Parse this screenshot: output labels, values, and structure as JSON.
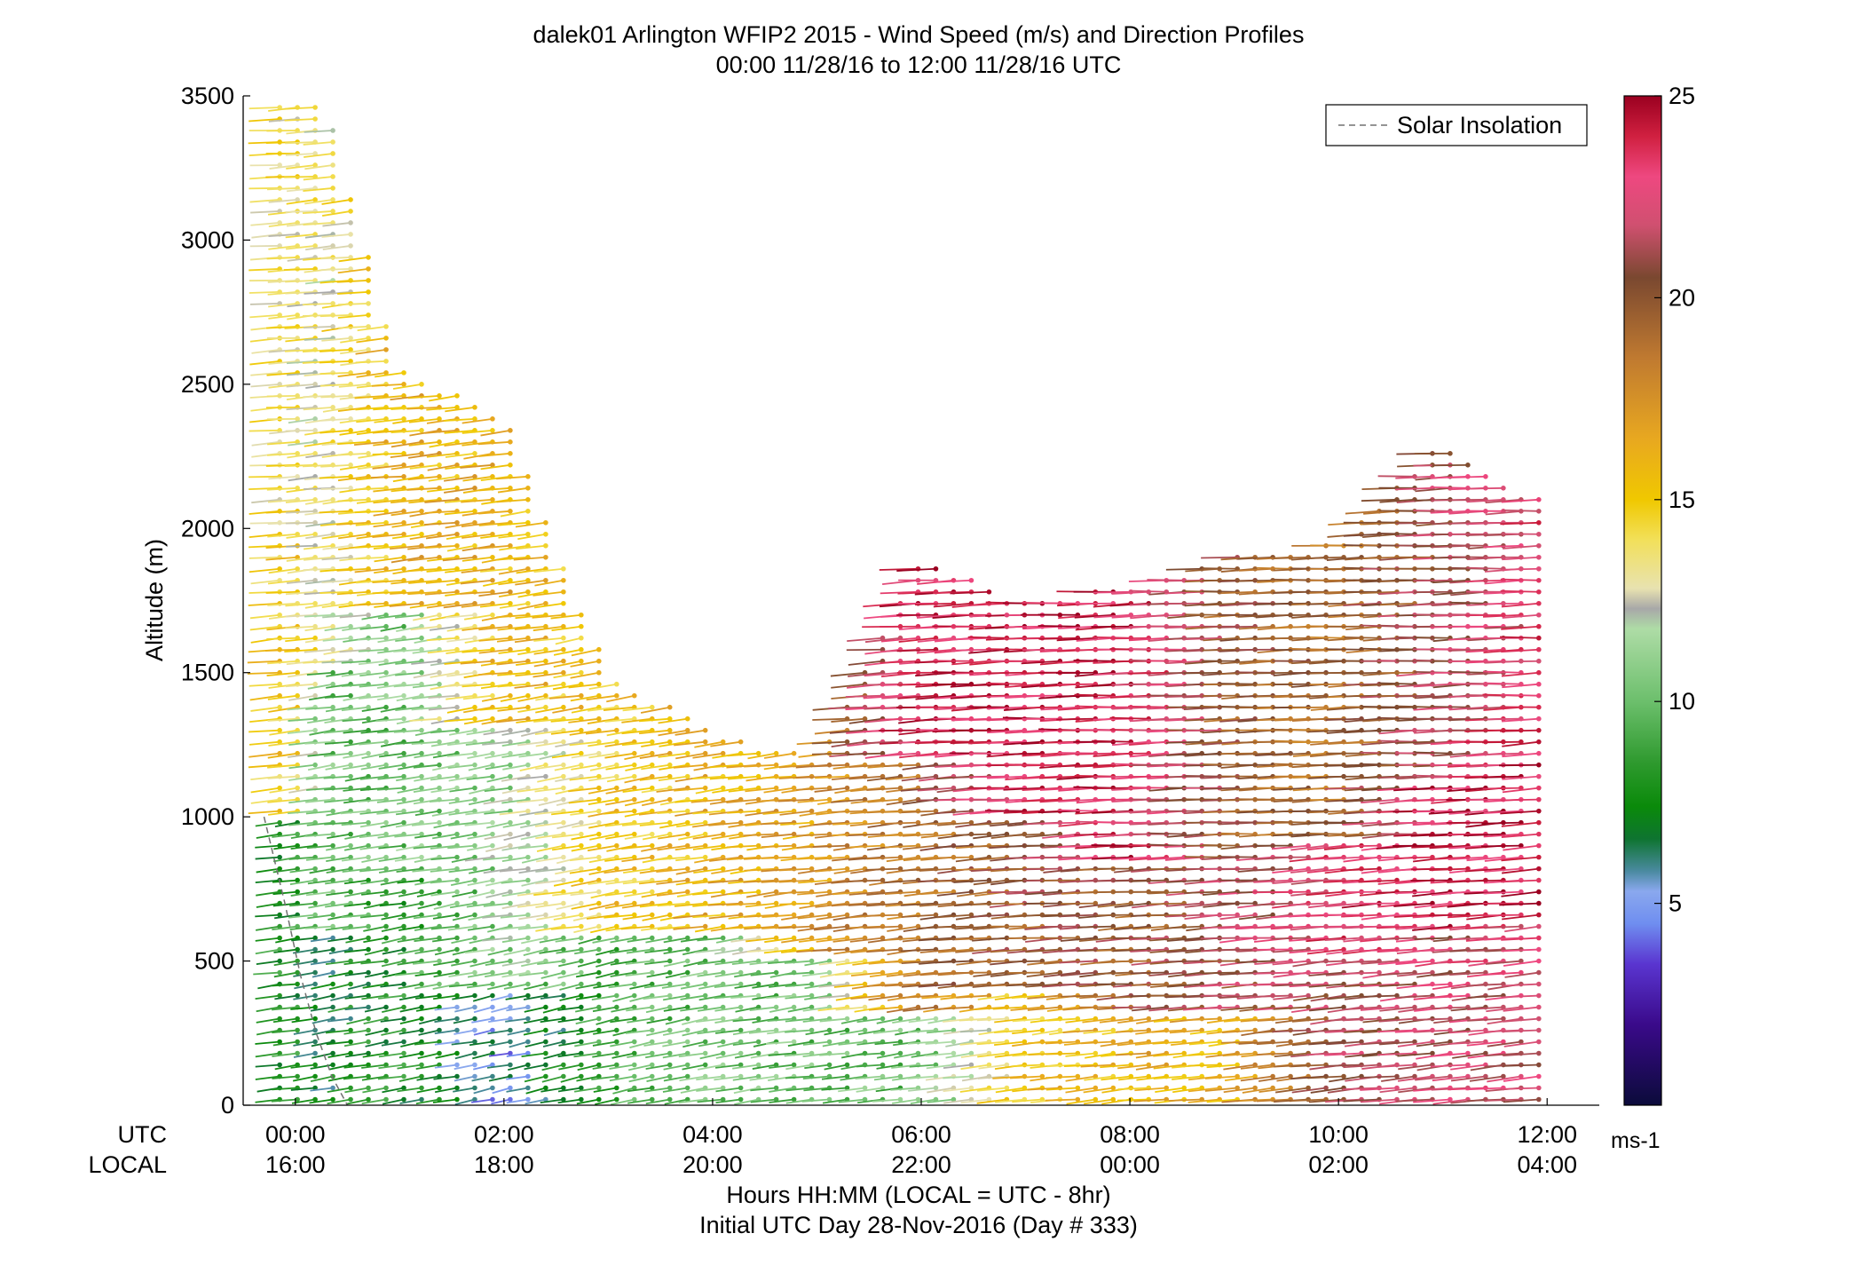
{
  "chart_data": {
    "type": "wind-barb-profile",
    "title": "dalek01 Arlington WFIP2 2015 - Wind Speed (m/s) and Direction Profiles",
    "subtitle": "00:00 11/28/16 to 12:00 11/28/16  UTC",
    "ylabel": "Altitude (m)",
    "xlabel": "Hours HH:MM  (LOCAL = UTC - 8hr)",
    "xlabel2": "Initial UTC Day 28-Nov-2016 (Day # 333)",
    "xrow_labels": {
      "utc": "UTC",
      "local": "LOCAL"
    },
    "xlim_hours": [
      -0.5,
      12.5
    ],
    "ylim": [
      0,
      3500
    ],
    "x_ticks": [
      {
        "hour": 0,
        "utc": "00:00",
        "local": "16:00"
      },
      {
        "hour": 2,
        "utc": "02:00",
        "local": "18:00"
      },
      {
        "hour": 4,
        "utc": "04:00",
        "local": "20:00"
      },
      {
        "hour": 6,
        "utc": "06:00",
        "local": "22:00"
      },
      {
        "hour": 8,
        "utc": "08:00",
        "local": "00:00"
      },
      {
        "hour": 10,
        "utc": "10:00",
        "local": "02:00"
      },
      {
        "hour": 12,
        "utc": "12:00",
        "local": "04:00"
      }
    ],
    "y_ticks": [
      {
        "value": 0,
        "label": "0"
      },
      {
        "value": 500,
        "label": "500"
      },
      {
        "value": 1000,
        "label": "1000"
      },
      {
        "value": 1500,
        "label": "1500"
      },
      {
        "value": 2000,
        "label": "2000"
      },
      {
        "value": 2500,
        "label": "2500"
      },
      {
        "value": 3000,
        "label": "3000"
      },
      {
        "value": 3500,
        "label": "3500"
      }
    ],
    "colorbar": {
      "min": 0,
      "max": 25,
      "unit_label": "ms-1",
      "ticks": [
        {
          "value": 5,
          "label": "5"
        },
        {
          "value": 10,
          "label": "10"
        },
        {
          "value": 15,
          "label": "15"
        },
        {
          "value": 20,
          "label": "20"
        },
        {
          "value": 25,
          "label": "25"
        }
      ],
      "stops": [
        {
          "v": 0,
          "c": "#0b0b3a"
        },
        {
          "v": 2,
          "c": "#3a0a8a"
        },
        {
          "v": 3.5,
          "c": "#5a35d0"
        },
        {
          "v": 4.5,
          "c": "#6f8ef0"
        },
        {
          "v": 5.3,
          "c": "#8aa8ee"
        },
        {
          "v": 5.8,
          "c": "#4a8aa0"
        },
        {
          "v": 6.6,
          "c": "#0e7430"
        },
        {
          "v": 7.4,
          "c": "#0a8a0a"
        },
        {
          "v": 8.5,
          "c": "#2f9a2f"
        },
        {
          "v": 10,
          "c": "#6cbf6c"
        },
        {
          "v": 11.8,
          "c": "#aedca6"
        },
        {
          "v": 12.3,
          "c": "#a8a8a8"
        },
        {
          "v": 12.8,
          "c": "#e8e2b0"
        },
        {
          "v": 14,
          "c": "#f2e05a"
        },
        {
          "v": 15,
          "c": "#f0c800"
        },
        {
          "v": 16.5,
          "c": "#e8a820"
        },
        {
          "v": 18.5,
          "c": "#c07a30"
        },
        {
          "v": 20.5,
          "c": "#7a4830"
        },
        {
          "v": 21.8,
          "c": "#d05070"
        },
        {
          "v": 23,
          "c": "#ee4880"
        },
        {
          "v": 24,
          "c": "#d02040"
        },
        {
          "v": 25,
          "c": "#9a0020"
        }
      ]
    },
    "legend": {
      "entries": [
        "Solar Insolation"
      ],
      "position": "top-right"
    },
    "solar_insolation": {
      "style": "dashed",
      "color": "#707070",
      "points": [
        [
          -0.3,
          1000
        ],
        [
          -0.1,
          700
        ],
        [
          0.05,
          450
        ],
        [
          0.2,
          250
        ],
        [
          0.35,
          100
        ],
        [
          0.5,
          0
        ]
      ]
    },
    "barb_profiles": {
      "note": "Representative columns of wind barbs: time (UTC hours) vs top altitude and speed/direction bands",
      "columns": [
        {
          "hour": 0.0,
          "top": 3470,
          "bands": [
            [
              0,
              1000,
              8,
              250
            ],
            [
              1000,
              2000,
              15,
              255
            ],
            [
              2000,
              3470,
              14,
              260
            ]
          ]
        },
        {
          "hour": 0.3,
          "top": 3460,
          "bands": [
            [
              0,
              600,
              7,
              245
            ],
            [
              600,
              1500,
              10,
              250
            ],
            [
              1500,
              3460,
              13,
              255
            ]
          ]
        },
        {
          "hour": 1.0,
          "top": 2550,
          "bands": [
            [
              0,
              800,
              8,
              245
            ],
            [
              800,
              1700,
              10,
              250
            ],
            [
              1700,
              2550,
              16,
              255
            ]
          ]
        },
        {
          "hour": 2.0,
          "top": 2400,
          "bands": [
            [
              0,
              400,
              5,
              240
            ],
            [
              400,
              1300,
              11,
              245
            ],
            [
              1300,
              2400,
              16,
              250
            ]
          ]
        },
        {
          "hour": 3.0,
          "top": 1500,
          "bands": [
            [
              0,
              600,
              9,
              240
            ],
            [
              600,
              1500,
              15,
              245
            ]
          ]
        },
        {
          "hour": 4.0,
          "top": 1300,
          "bands": [
            [
              0,
              600,
              10,
              245
            ],
            [
              600,
              1300,
              16,
              250
            ]
          ]
        },
        {
          "hour": 5.0,
          "top": 1200,
          "bands": [
            [
              0,
              500,
              10,
              250
            ],
            [
              500,
              1200,
              17,
              255
            ]
          ]
        },
        {
          "hour": 6.0,
          "top": 1900,
          "bands": [
            [
              0,
              300,
              10,
              250
            ],
            [
              300,
              1200,
              19,
              255
            ],
            [
              1200,
              1900,
              24,
              260
            ]
          ]
        },
        {
          "hour": 7.0,
          "top": 1750,
          "bands": [
            [
              0,
              400,
              15,
              255
            ],
            [
              400,
              1000,
              20,
              260
            ],
            [
              1000,
              1750,
              24,
              265
            ]
          ]
        },
        {
          "hour": 8.0,
          "top": 1800,
          "bands": [
            [
              0,
              300,
              16,
              255
            ],
            [
              300,
              850,
              20,
              260
            ],
            [
              850,
              1800,
              24,
              265
            ]
          ]
        },
        {
          "hour": 9.0,
          "top": 1900,
          "bands": [
            [
              0,
              300,
              16,
              255
            ],
            [
              300,
              850,
              21,
              260
            ],
            [
              850,
              1900,
              20,
              265
            ]
          ]
        },
        {
          "hour": 10.0,
          "top": 1950,
          "bands": [
            [
              0,
              500,
              21,
              255
            ],
            [
              500,
              900,
              23,
              260
            ],
            [
              900,
              1950,
              19,
              265
            ]
          ]
        },
        {
          "hour": 11.0,
          "top": 2300,
          "bands": [
            [
              0,
              600,
              22,
              255
            ],
            [
              600,
              1100,
              24,
              260
            ],
            [
              1100,
              2300,
              21,
              265
            ]
          ]
        },
        {
          "hour": 11.9,
          "top": 2100,
          "bands": [
            [
              0,
              650,
              22,
              255
            ],
            [
              650,
              1300,
              24,
              260
            ],
            [
              1300,
              2100,
              23,
              265
            ]
          ]
        }
      ]
    }
  }
}
